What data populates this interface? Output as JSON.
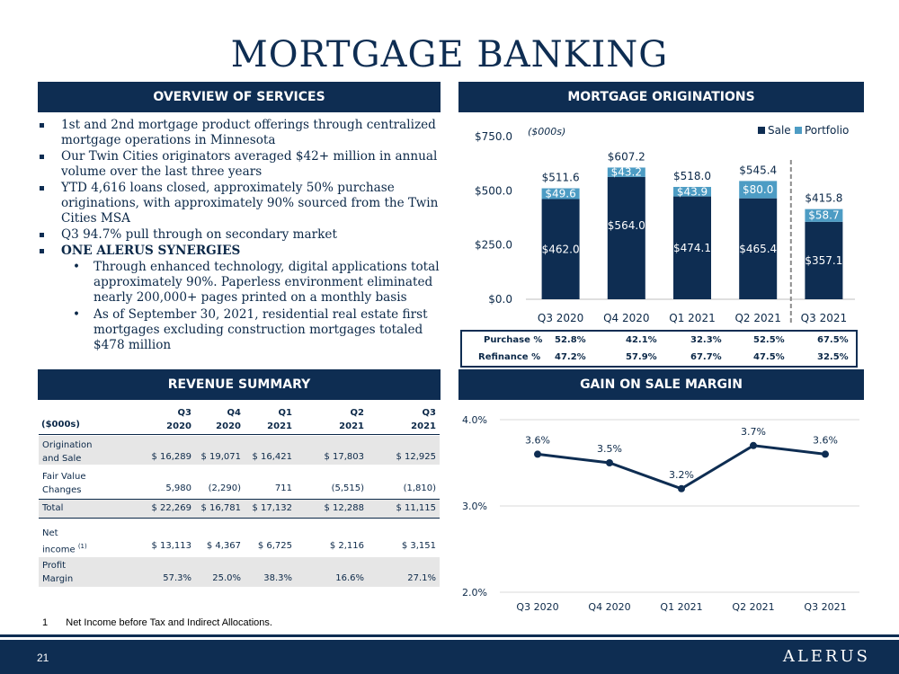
{
  "page_title": "MORTGAGE BANKING",
  "sections": {
    "overview": "OVERVIEW OF SERVICES",
    "originations": "MORTGAGE ORIGINATIONS",
    "revenue": "REVENUE SUMMARY",
    "gain": "GAIN ON SALE MARGIN"
  },
  "overview": {
    "bullets": [
      "1st and 2nd mortgage product offerings through centralized mortgage operations in Minnesota",
      "Our Twin Cities originators averaged $42+ million in annual volume over the last three years",
      "YTD 4,616 loans closed, approximately 50% purchase originations, with approximately 90% sourced from the Twin Cities MSA",
      "Q3 94.7% pull through on secondary market",
      "ONE ALERUS SYNERGIES"
    ],
    "sub_bullets": [
      "Through enhanced technology, digital applications total approximately 90%. Paperless environment eliminated nearly 200,000+ pages printed on a monthly basis",
      "As of September 30, 2021, residential real estate first mortgages excluding construction mortgages totaled $478 million"
    ]
  },
  "chart_data": [
    {
      "type": "bar",
      "stacked": true,
      "unit_note": "($000s)",
      "categories": [
        "Q3 2020",
        "Q4 2020",
        "Q1 2021",
        "Q2 2021",
        "Q3 2021"
      ],
      "series": [
        {
          "name": "Sale",
          "values": [
            462.0,
            564.0,
            474.1,
            465.4,
            357.1
          ],
          "labels": [
            "$462.0",
            "$564.0",
            "$474.1",
            "$465.4",
            "$357.1"
          ],
          "color": "#0e2d52"
        },
        {
          "name": "Portfolio",
          "values": [
            49.6,
            43.2,
            43.9,
            80.0,
            58.7
          ],
          "labels": [
            "$49.6",
            "$43.2",
            "$43.9",
            "$80.0",
            "$58.7"
          ],
          "color": "#4d9cc4"
        }
      ],
      "totals": [
        511.6,
        607.2,
        518.0,
        545.4,
        415.8
      ],
      "total_labels": [
        "$511.6",
        "$607.2",
        "$518.0",
        "$545.4",
        "$415.8"
      ],
      "ylim": [
        0,
        750
      ],
      "yticks": [
        0,
        250,
        500,
        750
      ],
      "ytick_labels": [
        "$0.0",
        "$250.0",
        "$500.0",
        "$750.0"
      ],
      "legend": "top-right",
      "grid": false
    },
    {
      "type": "line",
      "categories": [
        "Q3 2020",
        "Q4 2020",
        "Q1 2021",
        "Q2 2021",
        "Q3 2021"
      ],
      "values": [
        3.6,
        3.5,
        3.2,
        3.7,
        3.6
      ],
      "labels": [
        "3.6%",
        "3.5%",
        "3.2%",
        "3.7%",
        "3.6%"
      ],
      "ylim": [
        2.0,
        4.0
      ],
      "yticks": [
        2.0,
        3.0,
        4.0
      ],
      "ytick_labels": [
        "2.0%",
        "3.0%",
        "4.0%"
      ],
      "color": "#0e2d52",
      "grid": true
    }
  ],
  "mix_table": {
    "rows": [
      {
        "label": "Purchase %",
        "values": [
          "52.8%",
          "42.1%",
          "32.3%",
          "52.5%",
          "67.5%"
        ]
      },
      {
        "label": "Refinance %",
        "values": [
          "47.2%",
          "57.9%",
          "67.7%",
          "47.5%",
          "32.5%"
        ]
      }
    ]
  },
  "revenue": {
    "unit": "($000s)",
    "headers": [
      [
        "Q3",
        "2020"
      ],
      [
        "Q4",
        "2020"
      ],
      [
        "Q1",
        "2021"
      ],
      [
        "Q2",
        "2021"
      ],
      [
        "Q3",
        "2021"
      ]
    ],
    "rows": [
      {
        "label": [
          "Origination",
          "and Sale"
        ],
        "values": [
          "$ 16,289",
          "$ 19,071",
          "$ 16,421",
          "$ 17,803",
          "$ 12,925"
        ],
        "shaded": true
      },
      {
        "label": [
          "Fair Value",
          "Changes"
        ],
        "values": [
          "5,980",
          "(2,290)",
          "711",
          "(5,515)",
          "(1,810)"
        ],
        "shaded": false
      },
      {
        "label": [
          "Total"
        ],
        "values": [
          "$  22,269",
          "$ 16,781",
          "$ 17,132",
          "$ 12,288",
          "$ 11,115"
        ],
        "shaded": true
      },
      {
        "label": [
          "Net",
          "income"
        ],
        "sup": "(1)",
        "values": [
          "$ 13,113",
          "$ 4,367",
          "$ 6,725",
          "$ 2,116",
          "$ 3,151"
        ],
        "shaded": false
      },
      {
        "label": [
          "Profit",
          "Margin"
        ],
        "values": [
          "57.3%",
          "25.0%",
          "38.3%",
          "16.6%",
          "27.1%"
        ],
        "shaded": true
      }
    ]
  },
  "footnote": {
    "number": "1",
    "text": "Net Income before Tax and Indirect Allocations."
  },
  "footer": {
    "page_number": "21",
    "logo": "ALERUS"
  }
}
